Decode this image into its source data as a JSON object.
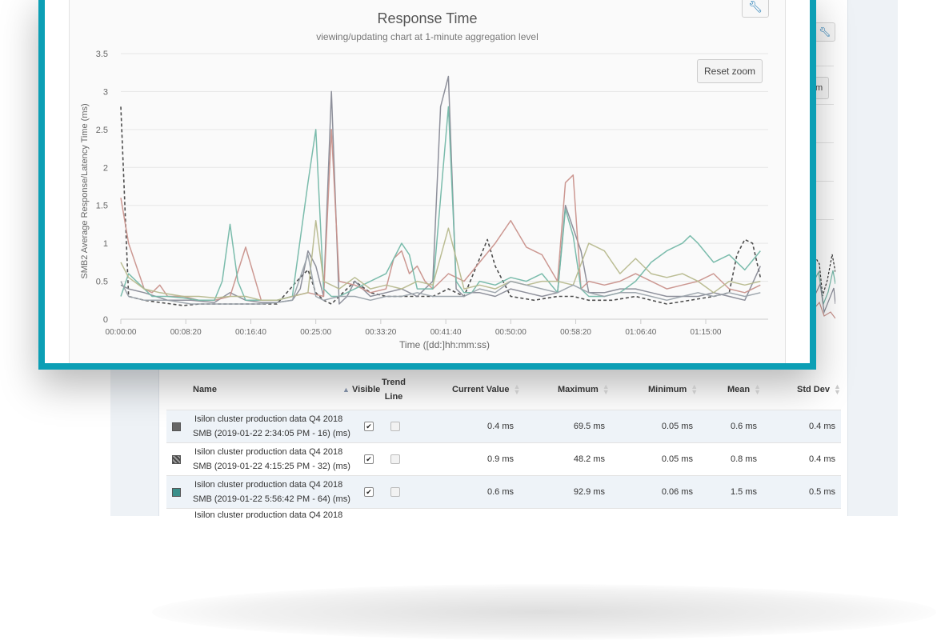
{
  "chart": {
    "title": "Response Time",
    "subtitle": "viewing/updating chart at 1-minute aggregation level",
    "reset_zoom_label": "Reset zoom",
    "menu_icon": "wrench-icon"
  },
  "chart_data": {
    "type": "line",
    "title": "Response Time",
    "subtitle": "viewing/updating chart at 1-minute aggregation level",
    "xlabel": "Time ([dd:]hh:mm:ss)",
    "ylabel": "SMB2 Average Response/Latency Time (ms)",
    "ylim": [
      0,
      3.5
    ],
    "xlim_minutes": [
      0,
      83
    ],
    "grid": true,
    "yticks": [
      "0",
      "0.5",
      "1",
      "1.5",
      "2",
      "2.5",
      "3",
      "3.5"
    ],
    "xticks": [
      {
        "t": 0,
        "label": "00:00:00"
      },
      {
        "t": 8.33,
        "label": "00:08:20"
      },
      {
        "t": 16.67,
        "label": "00:16:40"
      },
      {
        "t": 25,
        "label": "00:25:00"
      },
      {
        "t": 33.33,
        "label": "00:33:20"
      },
      {
        "t": 41.67,
        "label": "00:41:40"
      },
      {
        "t": 50,
        "label": "00:50:00"
      },
      {
        "t": 58.33,
        "label": "00:58:20"
      },
      {
        "t": 66.67,
        "label": "01:06:40"
      },
      {
        "t": 75,
        "label": "01:15:00"
      }
    ],
    "series": [
      {
        "color": "#444444",
        "dash": true,
        "x": [
          0,
          1,
          3,
          5,
          8,
          10,
          13,
          16,
          20,
          23,
          24,
          25,
          26,
          27,
          28,
          30,
          32,
          34,
          37,
          40,
          42,
          44,
          46,
          47,
          48,
          50,
          53,
          56,
          58,
          60,
          63,
          66,
          70,
          73,
          76,
          78,
          79,
          80,
          81,
          82
        ],
        "y": [
          2.8,
          0.3,
          0.25,
          0.22,
          0.18,
          0.2,
          0.2,
          0.2,
          0.2,
          0.55,
          0.65,
          0.35,
          0.25,
          0.2,
          0.3,
          0.5,
          0.35,
          0.3,
          0.3,
          0.3,
          0.4,
          0.3,
          0.8,
          1.05,
          0.7,
          0.3,
          0.25,
          0.3,
          0.3,
          0.25,
          0.25,
          0.3,
          0.2,
          0.25,
          0.3,
          0.35,
          0.85,
          1.05,
          1.0,
          0.55
        ]
      },
      {
        "color": "#888a96",
        "x": [
          0,
          1,
          3,
          6,
          9,
          12,
          14,
          16,
          18,
          20,
          22,
          23,
          24,
          25,
          26,
          27,
          28,
          29,
          30,
          32,
          34,
          36,
          38,
          40,
          41,
          42,
          43,
          44,
          45,
          46,
          48,
          50,
          52,
          54,
          56,
          57,
          58,
          59,
          60,
          62,
          64,
          66,
          68,
          70,
          72,
          74,
          76,
          78,
          80,
          82
        ],
        "y": [
          0.45,
          0.4,
          0.35,
          0.25,
          0.25,
          0.22,
          0.35,
          0.25,
          0.22,
          0.22,
          0.25,
          0.4,
          0.9,
          0.7,
          0.3,
          3.0,
          0.2,
          0.3,
          0.5,
          0.3,
          0.35,
          0.4,
          0.3,
          0.5,
          2.8,
          3.2,
          0.4,
          0.3,
          0.35,
          0.35,
          0.3,
          0.4,
          0.35,
          0.3,
          0.35,
          1.5,
          1.2,
          0.9,
          0.35,
          0.35,
          0.4,
          0.4,
          0.35,
          0.3,
          0.3,
          0.3,
          0.35,
          0.3,
          0.25,
          0.7
        ]
      },
      {
        "color": "#c9928c",
        "x": [
          0,
          1,
          3,
          4,
          5,
          6,
          8,
          10,
          12,
          14,
          16,
          18,
          20,
          22,
          24,
          26,
          27,
          28,
          30,
          32,
          34,
          35,
          36,
          37,
          38,
          39,
          40,
          42,
          44,
          46,
          48,
          50,
          52,
          54,
          56,
          57,
          58,
          59,
          60,
          62,
          64,
          66,
          68,
          70,
          72,
          74,
          76,
          78,
          80,
          82
        ],
        "y": [
          1.6,
          1.0,
          0.4,
          0.35,
          0.45,
          0.3,
          0.3,
          0.25,
          0.25,
          0.3,
          0.95,
          0.25,
          0.25,
          0.3,
          0.35,
          0.3,
          2.5,
          0.5,
          0.45,
          0.35,
          0.4,
          0.8,
          0.9,
          0.6,
          0.7,
          0.5,
          0.4,
          0.6,
          0.5,
          0.75,
          1.0,
          1.3,
          0.95,
          0.85,
          0.5,
          1.8,
          1.9,
          0.4,
          0.5,
          0.45,
          0.5,
          0.6,
          0.5,
          0.4,
          0.45,
          0.5,
          0.6,
          0.4,
          0.35,
          0.45
        ]
      },
      {
        "color": "#74b8a8",
        "x": [
          0,
          1,
          2,
          4,
          6,
          8,
          10,
          12,
          13,
          14,
          15,
          16,
          18,
          20,
          22,
          24,
          25,
          26,
          27,
          28,
          30,
          32,
          34,
          36,
          37,
          38,
          40,
          42,
          43,
          44,
          45,
          46,
          48,
          50,
          52,
          54,
          56,
          57,
          58,
          59,
          60,
          62,
          64,
          66,
          68,
          70,
          72,
          73,
          74,
          76,
          78,
          80,
          82
        ],
        "y": [
          0.3,
          0.6,
          0.5,
          0.3,
          0.3,
          0.28,
          0.25,
          0.25,
          0.5,
          1.25,
          0.5,
          0.25,
          0.25,
          0.25,
          0.3,
          1.8,
          2.5,
          0.4,
          0.3,
          0.3,
          0.4,
          0.5,
          0.6,
          1.0,
          0.85,
          0.4,
          0.4,
          2.8,
          0.5,
          0.35,
          0.35,
          0.5,
          0.45,
          0.55,
          0.5,
          0.6,
          0.35,
          1.45,
          1.1,
          0.4,
          0.3,
          0.3,
          0.35,
          0.5,
          0.75,
          0.9,
          1.0,
          1.1,
          1.0,
          0.75,
          0.85,
          0.65,
          0.9
        ]
      },
      {
        "color": "#b7b98e",
        "x": [
          0,
          1,
          3,
          5,
          8,
          10,
          12,
          14,
          16,
          18,
          20,
          22,
          24,
          25,
          26,
          28,
          30,
          32,
          34,
          36,
          38,
          40,
          42,
          44,
          46,
          48,
          50,
          52,
          54,
          56,
          58,
          60,
          62,
          64,
          66,
          68,
          70,
          72,
          74,
          76,
          78,
          80,
          82
        ],
        "y": [
          0.75,
          0.55,
          0.4,
          0.35,
          0.3,
          0.3,
          0.28,
          0.3,
          0.3,
          0.25,
          0.25,
          0.3,
          0.35,
          1.3,
          0.5,
          0.4,
          0.55,
          0.4,
          0.45,
          0.4,
          0.5,
          0.45,
          1.2,
          0.4,
          0.45,
          0.4,
          0.5,
          0.45,
          0.5,
          0.5,
          0.45,
          1.0,
          0.9,
          0.6,
          0.8,
          0.6,
          0.55,
          0.6,
          0.5,
          0.35,
          0.5,
          0.45,
          0.5
        ]
      },
      {
        "color": "#9aa2aa",
        "x": [
          0,
          1,
          3,
          6,
          9,
          12,
          15,
          18,
          20,
          22,
          24,
          25,
          26,
          28,
          30,
          32,
          34,
          36,
          38,
          40,
          42,
          44,
          46,
          48,
          50,
          52,
          54,
          56,
          58,
          60,
          62,
          64,
          66,
          68,
          70,
          72,
          74,
          76,
          78,
          80,
          82
        ],
        "y": [
          0.5,
          0.3,
          0.25,
          0.25,
          0.2,
          0.2,
          0.2,
          0.2,
          0.22,
          0.25,
          0.85,
          0.3,
          0.25,
          0.3,
          0.3,
          0.25,
          0.3,
          0.3,
          0.35,
          0.3,
          0.3,
          0.3,
          0.4,
          0.35,
          0.5,
          0.45,
          0.4,
          0.35,
          0.45,
          0.35,
          0.3,
          0.35,
          0.35,
          0.3,
          0.25,
          0.3,
          0.35,
          0.3,
          0.35,
          0.3,
          0.35
        ]
      }
    ]
  },
  "table": {
    "columns": {
      "name": "Name",
      "visible": "Visible",
      "trend_1": "Trend",
      "trend_2": "Line",
      "current": "Current Value",
      "maximum": "Maximum",
      "minimum": "Minimum",
      "mean": "Mean",
      "stddev": "Std Dev"
    },
    "rows": [
      {
        "name_1": "Isilon cluster production data Q4 2018",
        "name_2": "SMB (2019-01-22 2:34:05 PM - 16) (ms)",
        "color": "#666666",
        "visible": true,
        "trend": false,
        "current": "0.4 ms",
        "maximum": "69.5 ms",
        "minimum": "0.05 ms",
        "mean": "0.6 ms",
        "stddev": "0.4 ms"
      },
      {
        "name_1": "Isilon cluster production data Q4 2018",
        "name_2": "SMB (2019-01-22 4:15:25 PM - 32) (ms)",
        "color": "#5a5a5a",
        "visible": true,
        "trend": false,
        "current": "0.9 ms",
        "maximum": "48.2 ms",
        "minimum": "0.05 ms",
        "mean": "0.8 ms",
        "stddev": "0.4 ms"
      },
      {
        "name_1": "Isilon cluster production data Q4 2018",
        "name_2": "SMB (2019-01-22 5:56:42 PM - 64) (ms)",
        "color": "#3b8f8a",
        "visible": true,
        "trend": false,
        "current": "0.6 ms",
        "maximum": "92.9 ms",
        "minimum": "0.06 ms",
        "mean": "1.5 ms",
        "stddev": "0.5 ms"
      },
      {
        "name_1": "Isilon cluster production data Q4 2018",
        "name_2": "",
        "color": "",
        "visible": false,
        "trend": false,
        "current": "",
        "maximum": "",
        "minimum": "",
        "mean": "",
        "stddev": ""
      }
    ]
  }
}
